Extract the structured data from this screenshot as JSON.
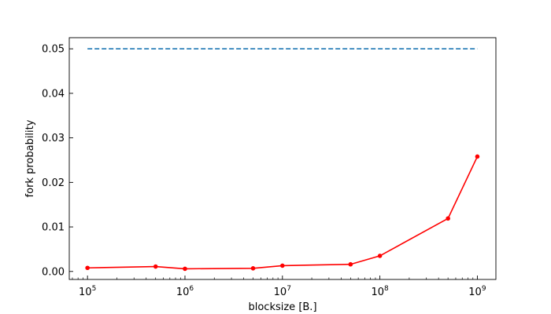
{
  "chart_data": {
    "type": "line",
    "title": "",
    "xlabel": "blocksize [B.]",
    "ylabel": "fork probability",
    "xscale": "log",
    "grid": false,
    "legend": "none",
    "xlim": [
      65000,
      1550000000
    ],
    "ylim": [
      -0.0018,
      0.0525
    ],
    "x_ticks": [
      {
        "value": 100000,
        "base": "10",
        "exp": "5"
      },
      {
        "value": 1000000,
        "base": "10",
        "exp": "6"
      },
      {
        "value": 10000000,
        "base": "10",
        "exp": "7"
      },
      {
        "value": 100000000,
        "base": "10",
        "exp": "8"
      },
      {
        "value": 1000000000,
        "base": "10",
        "exp": "9"
      }
    ],
    "y_ticks": [
      {
        "value": 0,
        "label": "0.00"
      },
      {
        "value": 0.01,
        "label": "0.01"
      },
      {
        "value": 0.02,
        "label": "0.02"
      },
      {
        "value": 0.03,
        "label": "0.03"
      },
      {
        "value": 0.04,
        "label": "0.04"
      },
      {
        "value": 0.05,
        "label": "0.05"
      }
    ],
    "series": [
      {
        "style": "dashed",
        "color": "#1f77b4",
        "markers": false,
        "x": [
          100000,
          1000000000
        ],
        "y": [
          0.05,
          0.05
        ]
      },
      {
        "style": "solid",
        "color": "#ff0000",
        "markers": true,
        "x": [
          100000,
          500000,
          1000000,
          5000000,
          10000000,
          50000000,
          100000000,
          500000000,
          1000000000
        ],
        "y": [
          0.0008,
          0.0011,
          0.0006,
          0.0007,
          0.0013,
          0.0016,
          0.0035,
          0.0119,
          0.0258
        ]
      }
    ]
  }
}
